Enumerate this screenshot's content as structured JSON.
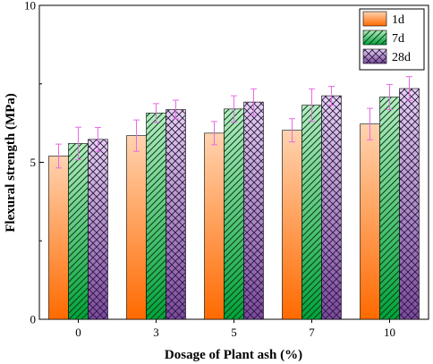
{
  "chart_data": {
    "type": "bar",
    "title": "",
    "xlabel": "Dosage of Plant ash (%)",
    "ylabel": "Flexural strength (MPa)",
    "categories": [
      "0",
      "3",
      "5",
      "7",
      "10"
    ],
    "ylim": [
      0,
      10
    ],
    "yticks": [
      "0",
      "5",
      "10"
    ],
    "grid": false,
    "legend_position": "top-right",
    "series": [
      {
        "name": "1d",
        "values": [
          5.2,
          5.85,
          5.93,
          6.02,
          6.22
        ],
        "errors": [
          0.38,
          0.5,
          0.37,
          0.37,
          0.5
        ],
        "fill": "gradient",
        "color_top": "#ffd3b0",
        "color_bottom": "#ff6a00",
        "pattern": "none"
      },
      {
        "name": "7d",
        "values": [
          5.6,
          6.57,
          6.7,
          6.82,
          7.08
        ],
        "errors": [
          0.52,
          0.3,
          0.42,
          0.52,
          0.4
        ],
        "fill": "gradient",
        "color_top": "#b6ecc3",
        "color_bottom": "#00a33a",
        "pattern": "diagonal-hatch"
      },
      {
        "name": "28d",
        "values": [
          5.73,
          6.68,
          6.92,
          7.12,
          7.35
        ],
        "errors": [
          0.38,
          0.3,
          0.42,
          0.3,
          0.38
        ],
        "fill": "gradient",
        "color_top": "#e4d3f0",
        "color_bottom": "#7a4a9c",
        "pattern": "cross-hatch"
      }
    ],
    "error_bar_color": "#e86ae8"
  }
}
